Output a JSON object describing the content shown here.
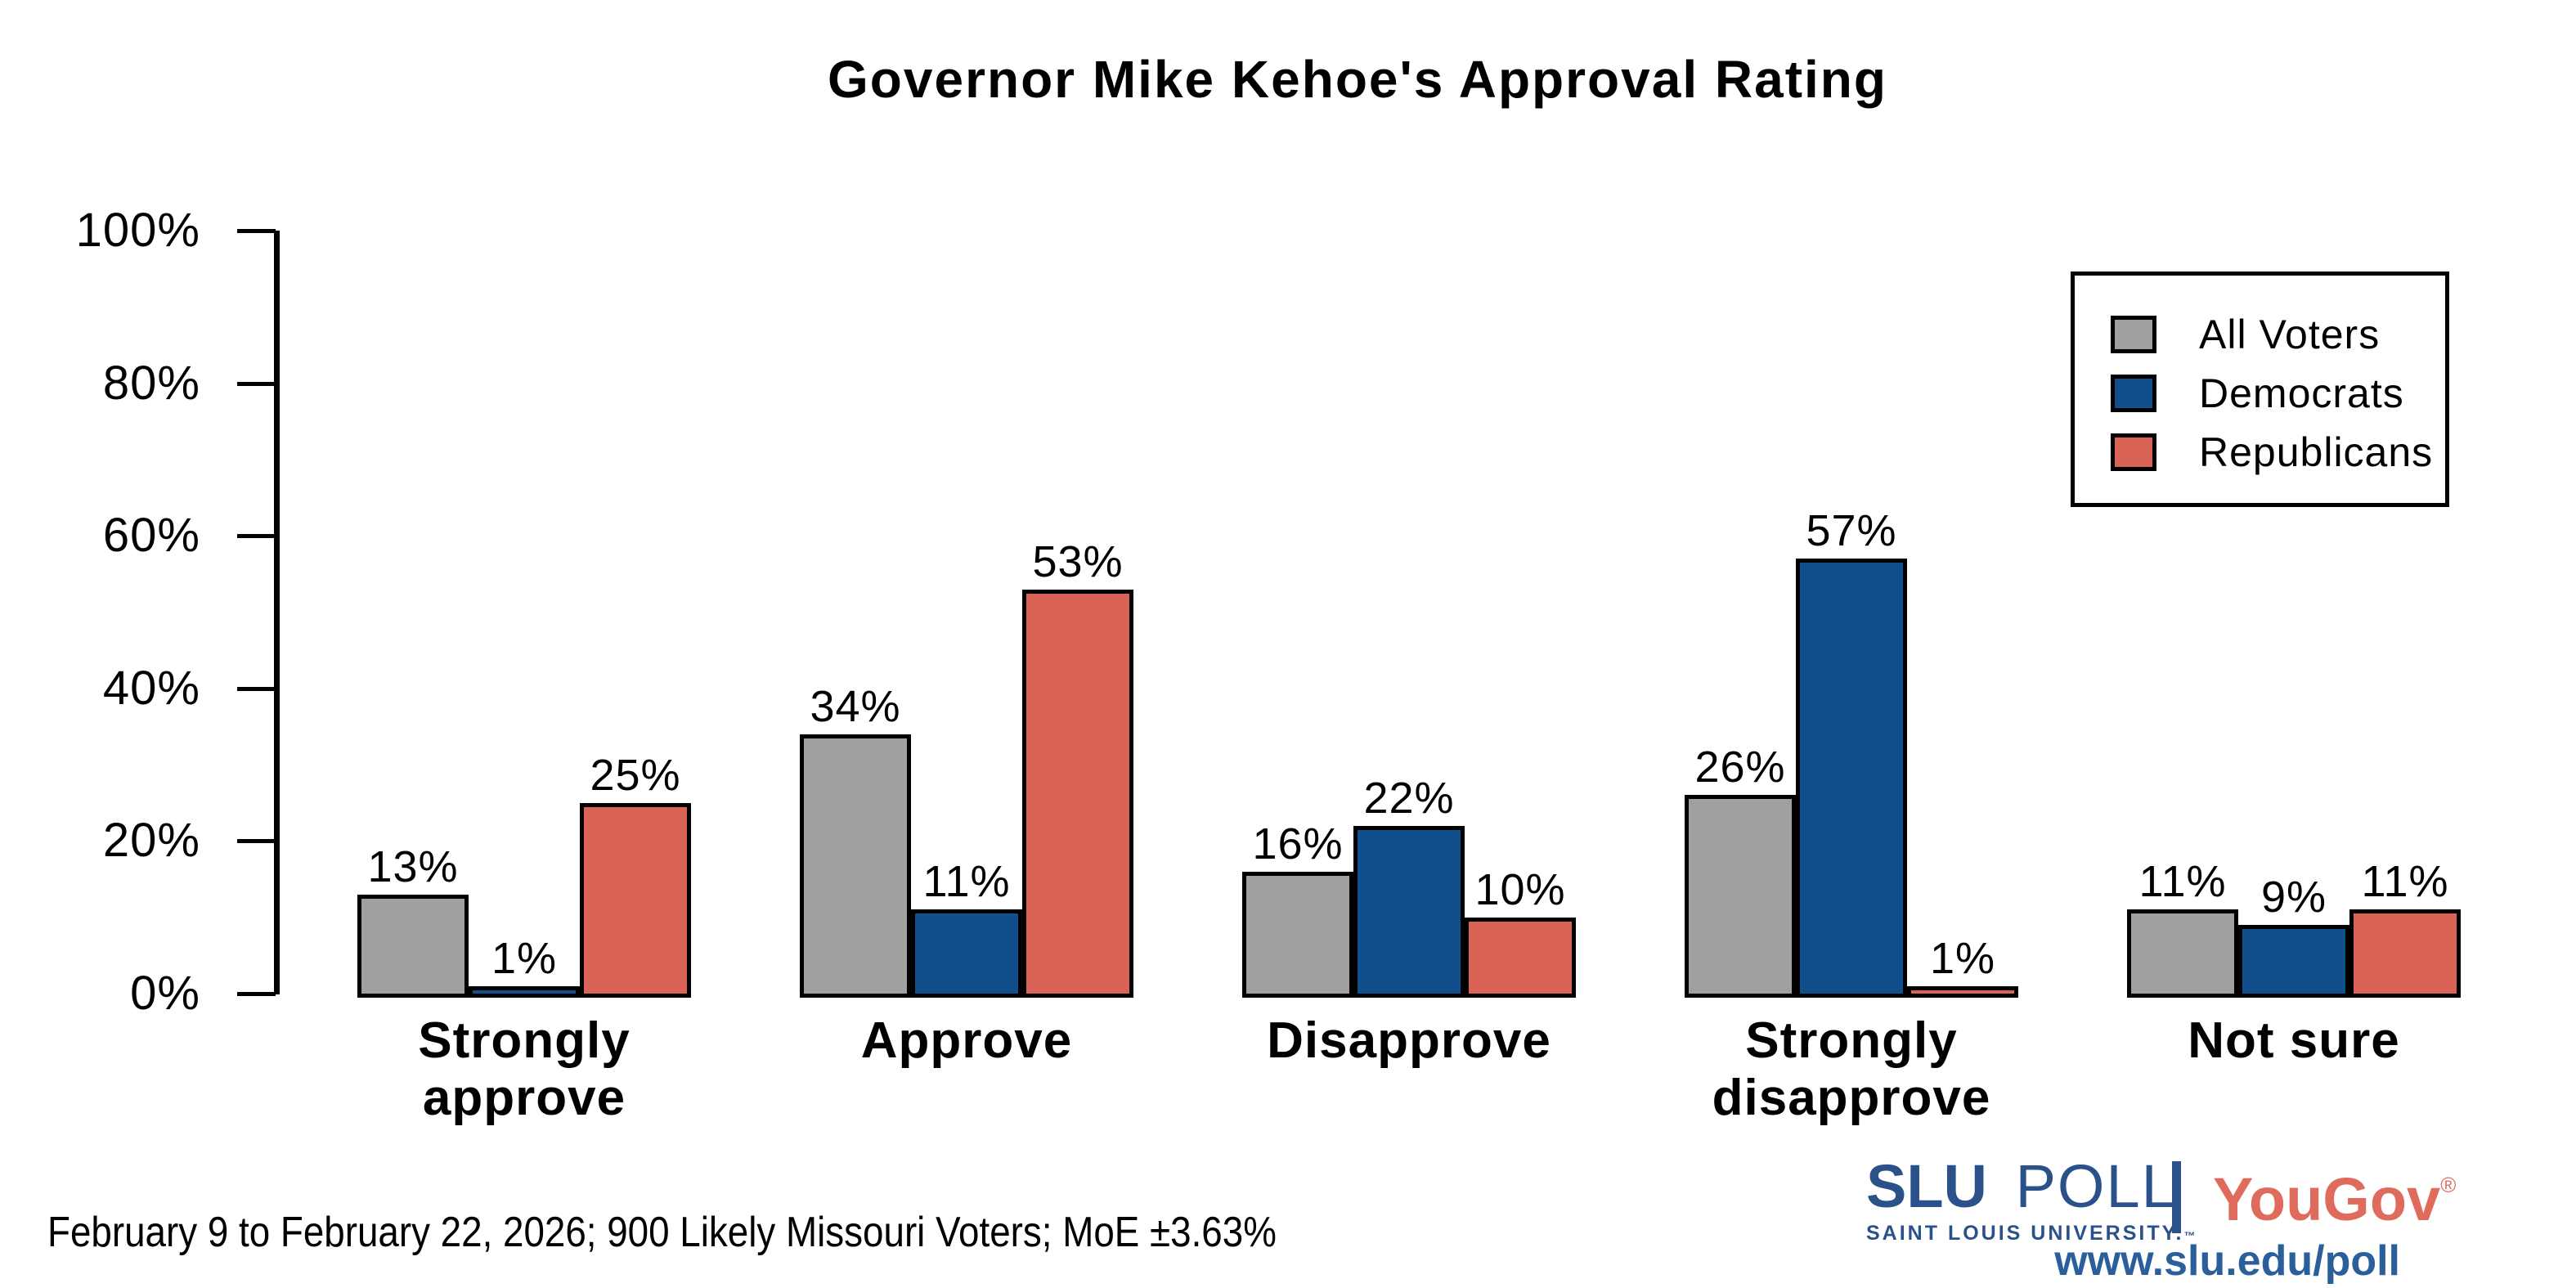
{
  "chart_data": {
    "type": "bar",
    "title": "Governor Mike Kehoe's Approval Rating",
    "categories": [
      "Strongly approve",
      "Approve",
      "Disapprove",
      "Strongly disapprove",
      "Not sure"
    ],
    "series": [
      {
        "name": "All Voters",
        "color": "#A0A0A0",
        "values": [
          13,
          34,
          16,
          26,
          11
        ]
      },
      {
        "name": "Democrats",
        "color": "#114F8C",
        "values": [
          1,
          11,
          22,
          57,
          9
        ]
      },
      {
        "name": "Republicans",
        "color": "#D96356",
        "values": [
          25,
          53,
          10,
          1,
          11
        ]
      }
    ],
    "value_unit": "%",
    "xlabel": "",
    "ylabel": "",
    "ylim": [
      0,
      100
    ],
    "ytick_labels": [
      "0%",
      "20%",
      "40%",
      "60%",
      "80%",
      "100%"
    ],
    "ytick_values": [
      0,
      20,
      40,
      60,
      80,
      100
    ],
    "grid": false,
    "bar_outline_color": "#000000",
    "legend_position": "top-right"
  },
  "footer": {
    "note": "February 9 to February 22, 2026; 900 Likely Missouri Voters; MoE ±3.63%"
  },
  "branding": {
    "slu": "SLU",
    "poll": "POLL",
    "slu_sub": "SAINT LOUIS UNIVERSITY.",
    "slu_tm": "™",
    "yougov": "YouGov",
    "yougov_mark": "®",
    "url": "www.slu.edu/poll",
    "slu_blue": "#2A5189",
    "yougov_red": "#DE6B5C"
  }
}
